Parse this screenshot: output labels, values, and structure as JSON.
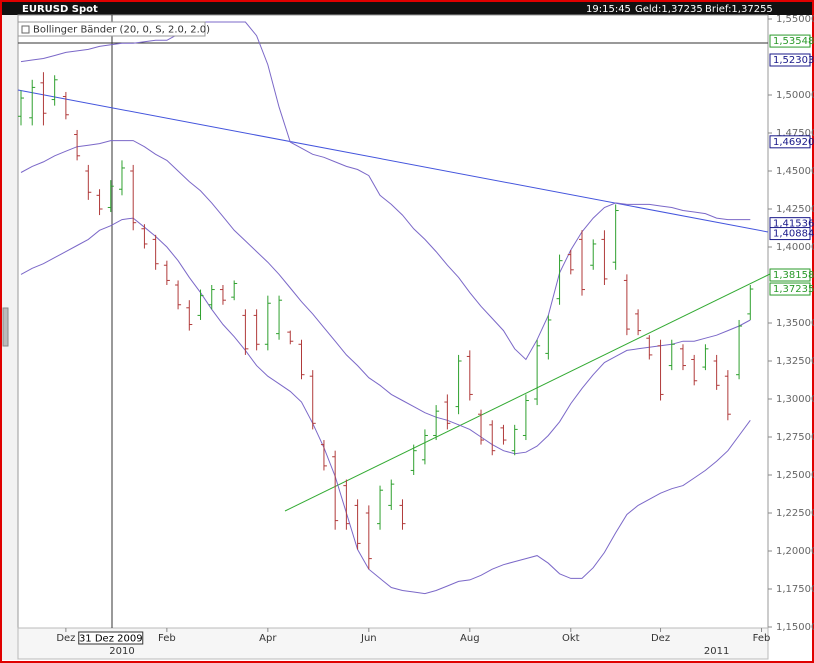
{
  "header": {
    "title": "EURUSD Spot",
    "time": "19:15:45",
    "bid": "Geld:1,37235",
    "ask": "Brief:1,37255"
  },
  "chart_data": {
    "type": "ohlc",
    "indicator_label": "Bollinger Bänder (20, 0, S, 2.0, 2.0)",
    "categories": [
      null,
      null,
      null,
      null,
      "Dez",
      null,
      null,
      null,
      null,
      null,
      null,
      null,
      null,
      "Feb",
      null,
      null,
      null,
      null,
      null,
      null,
      null,
      null,
      "Apr",
      null,
      null,
      null,
      null,
      null,
      null,
      null,
      null,
      "Jun",
      null,
      null,
      null,
      null,
      null,
      null,
      null,
      null,
      "Aug",
      null,
      null,
      null,
      null,
      null,
      null,
      null,
      null,
      "Okt",
      null,
      null,
      null,
      null,
      null,
      null,
      null,
      "Dez",
      null,
      null,
      null,
      null,
      null,
      null,
      null,
      null,
      "Feb"
    ],
    "category_years": [
      null,
      null,
      null,
      null,
      null,
      null,
      null,
      null,
      null,
      "2010",
      null,
      null,
      null,
      null,
      null,
      null,
      null,
      null,
      null,
      null,
      null,
      null,
      null,
      null,
      null,
      null,
      null,
      null,
      null,
      null,
      null,
      null,
      null,
      null,
      null,
      null,
      null,
      null,
      null,
      null,
      null,
      null,
      null,
      null,
      null,
      null,
      null,
      null,
      null,
      null,
      null,
      null,
      null,
      null,
      null,
      null,
      null,
      null,
      null,
      null,
      null,
      null,
      "2011",
      null,
      null,
      null,
      null
    ],
    "crosshair_labels": [
      null,
      null,
      null,
      null,
      null,
      null,
      null,
      null,
      "31 Dez 2009",
      null,
      null,
      null,
      null,
      null,
      null,
      null,
      null,
      null,
      null,
      null,
      null,
      null,
      null,
      null,
      null,
      null,
      null,
      null,
      null,
      null,
      null,
      null,
      null,
      null,
      null,
      null,
      null,
      null,
      null,
      null,
      null,
      null,
      null,
      null,
      null,
      null,
      null,
      null,
      null,
      null,
      null,
      null,
      null,
      null,
      null,
      null,
      null,
      null,
      null,
      null,
      null,
      null,
      null,
      null,
      null,
      null,
      null
    ],
    "open": [
      1.486,
      1.485,
      1.508,
      1.497,
      1.499,
      1.474,
      1.45,
      1.434,
      1.426,
      1.438,
      1.45,
      1.412,
      1.405,
      1.388,
      1.375,
      1.36,
      1.355,
      1.362,
      1.372,
      1.367,
      1.355,
      1.355,
      1.336,
      1.343,
      1.344,
      1.336,
      1.315,
      1.27,
      1.262,
      1.243,
      1.23,
      1.225,
      1.218,
      1.23,
      1.23,
      1.253,
      1.26,
      1.276,
      1.298,
      1.295,
      1.328,
      1.29,
      1.283,
      1.281,
      1.266,
      1.276,
      1.3,
      1.33,
      1.366,
      1.395,
      1.405,
      1.388,
      1.405,
      1.39,
      1.378,
      1.356,
      1.34,
      1.335,
      1.322,
      1.333,
      1.326,
      1.321,
      1.325,
      1.315,
      1.316,
      1.356,
      null
    ],
    "high": [
      1.503,
      1.51,
      1.515,
      1.513,
      1.502,
      1.477,
      1.454,
      1.438,
      1.444,
      1.457,
      1.454,
      1.415,
      1.408,
      1.391,
      1.378,
      1.365,
      1.372,
      1.375,
      1.375,
      1.378,
      1.359,
      1.359,
      1.368,
      1.368,
      1.345,
      1.339,
      1.319,
      1.273,
      1.266,
      1.247,
      1.234,
      1.23,
      1.243,
      1.247,
      1.234,
      1.27,
      1.28,
      1.296,
      1.303,
      1.329,
      1.332,
      1.293,
      1.286,
      1.283,
      1.283,
      1.303,
      1.339,
      1.355,
      1.395,
      1.398,
      1.411,
      1.405,
      1.411,
      1.428,
      1.382,
      1.359,
      1.342,
      1.339,
      1.339,
      1.336,
      1.329,
      1.336,
      1.329,
      1.319,
      1.352,
      1.375,
      null
    ],
    "low": [
      1.48,
      1.48,
      1.48,
      1.493,
      1.484,
      1.457,
      1.431,
      1.421,
      1.423,
      1.434,
      1.411,
      1.399,
      1.385,
      1.375,
      1.359,
      1.345,
      1.352,
      1.359,
      1.362,
      1.365,
      1.329,
      1.332,
      1.332,
      1.339,
      1.336,
      1.313,
      1.28,
      1.253,
      1.214,
      1.214,
      1.201,
      1.188,
      1.214,
      1.227,
      1.214,
      1.25,
      1.257,
      1.273,
      1.28,
      1.29,
      1.299,
      1.27,
      1.263,
      1.27,
      1.263,
      1.273,
      1.296,
      1.326,
      1.362,
      1.382,
      1.368,
      1.385,
      1.375,
      1.385,
      1.342,
      1.342,
      1.326,
      1.299,
      1.319,
      1.319,
      1.309,
      1.319,
      1.306,
      1.286,
      1.313,
      1.352,
      null
    ],
    "close": [
      1.498,
      1.505,
      1.488,
      1.51,
      1.487,
      1.46,
      1.436,
      1.425,
      1.44,
      1.452,
      1.416,
      1.402,
      1.389,
      1.378,
      1.362,
      1.349,
      1.368,
      1.372,
      1.365,
      1.376,
      1.333,
      1.336,
      1.363,
      1.365,
      1.338,
      1.316,
      1.284,
      1.256,
      1.22,
      1.218,
      1.205,
      1.195,
      1.24,
      1.244,
      1.218,
      1.266,
      1.276,
      1.292,
      1.284,
      1.325,
      1.303,
      1.273,
      1.266,
      1.273,
      1.28,
      1.299,
      1.335,
      1.352,
      1.391,
      1.385,
      1.372,
      1.402,
      1.379,
      1.424,
      1.346,
      1.345,
      1.329,
      1.303,
      1.336,
      1.322,
      1.312,
      1.333,
      1.309,
      1.29,
      1.348,
      1.37235,
      null
    ],
    "bands": {
      "upper": [
        1.522,
        1.523,
        1.524,
        1.526,
        1.528,
        1.529,
        1.53,
        1.532,
        1.533,
        1.534,
        1.534,
        1.535,
        1.536,
        1.536,
        1.54,
        1.544,
        1.548,
        1.548,
        1.548,
        1.548,
        1.548,
        1.539,
        1.52,
        1.492,
        1.469,
        1.465,
        1.461,
        1.459,
        1.456,
        1.453,
        1.451,
        1.447,
        1.434,
        1.428,
        1.421,
        1.412,
        1.405,
        1.397,
        1.388,
        1.38,
        1.37,
        1.361,
        1.353,
        1.345,
        1.333,
        1.326,
        1.339,
        1.355,
        1.383,
        1.398,
        1.41,
        1.419,
        1.426,
        1.429,
        1.428,
        1.428,
        1.428,
        1.427,
        1.426,
        1.424,
        1.423,
        1.422,
        1.419,
        1.418,
        1.418,
        1.418,
        null
      ],
      "middle": [
        1.449,
        1.453,
        1.456,
        1.46,
        1.463,
        1.466,
        1.467,
        1.468,
        1.47,
        1.47,
        1.47,
        1.466,
        1.461,
        1.457,
        1.45,
        1.443,
        1.437,
        1.429,
        1.42,
        1.411,
        1.404,
        1.397,
        1.39,
        1.382,
        1.373,
        1.364,
        1.356,
        1.347,
        1.338,
        1.329,
        1.322,
        1.314,
        1.309,
        1.303,
        1.299,
        1.295,
        1.291,
        1.288,
        1.286,
        1.283,
        1.28,
        1.275,
        1.27,
        1.266,
        1.264,
        1.265,
        1.269,
        1.276,
        1.285,
        1.297,
        1.307,
        1.316,
        1.324,
        1.328,
        1.332,
        1.333,
        1.334,
        1.335,
        1.336,
        1.338,
        1.338,
        1.34,
        1.342,
        1.345,
        1.348,
        1.352,
        null
      ],
      "lower": [
        1.382,
        1.386,
        1.389,
        1.393,
        1.397,
        1.401,
        1.405,
        1.411,
        1.414,
        1.418,
        1.419,
        1.413,
        1.407,
        1.4,
        1.391,
        1.38,
        1.37,
        1.359,
        1.349,
        1.341,
        1.332,
        1.322,
        1.315,
        1.31,
        1.305,
        1.298,
        1.284,
        1.268,
        1.249,
        1.225,
        1.201,
        1.188,
        1.182,
        1.176,
        1.174,
        1.173,
        1.172,
        1.174,
        1.177,
        1.18,
        1.181,
        1.184,
        1.188,
        1.191,
        1.193,
        1.195,
        1.197,
        1.192,
        1.185,
        1.182,
        1.182,
        1.189,
        1.199,
        1.212,
        1.224,
        1.23,
        1.234,
        1.238,
        1.241,
        1.243,
        1.248,
        1.253,
        1.259,
        1.266,
        1.276,
        1.286,
        null
      ]
    },
    "up_color": "#2ea02e",
    "down_color": "#b03a3a",
    "band_color": "#7b68c8",
    "ylim": [
      1.15,
      1.55
    ],
    "yticks": [
      {
        "value": 1.55,
        "label": "1,55000"
      },
      {
        "value": 1.5,
        "label": "1,50000"
      },
      {
        "value": 1.475,
        "label": "1,47500"
      },
      {
        "value": 1.45,
        "label": "1,45000"
      },
      {
        "value": 1.425,
        "label": "1,42500"
      },
      {
        "value": 1.4,
        "label": "1,40000"
      },
      {
        "value": 1.35,
        "label": "1,35000"
      },
      {
        "value": 1.325,
        "label": "1,32500"
      },
      {
        "value": 1.3,
        "label": "1,30000"
      },
      {
        "value": 1.275,
        "label": "1,27500"
      },
      {
        "value": 1.25,
        "label": "1,25000"
      },
      {
        "value": 1.225,
        "label": "1,22500"
      },
      {
        "value": 1.2,
        "label": "1,20000"
      },
      {
        "value": 1.175,
        "label": "1,17500"
      },
      {
        "value": 1.15,
        "label": "1,15000"
      }
    ],
    "price_flags": [
      {
        "value": 1.53548,
        "label": "1,53548",
        "color": "#2a9a2a"
      },
      {
        "value": 1.52303,
        "label": "1,52303",
        "color": "#1a1a8a"
      },
      {
        "value": 1.4692,
        "label": "1,46920",
        "color": "#1a1a8a"
      },
      {
        "value": 1.41536,
        "label": "1,41536",
        "color": "#1a1a8a"
      },
      {
        "value": 1.40884,
        "label": "1,40884",
        "color": "#1a1a8a"
      },
      {
        "value": 1.38158,
        "label": "1,38158",
        "color": "#2a9a2a"
      },
      {
        "value": 1.37235,
        "label": "1,37235",
        "color": "#2a9a2a"
      }
    ]
  }
}
